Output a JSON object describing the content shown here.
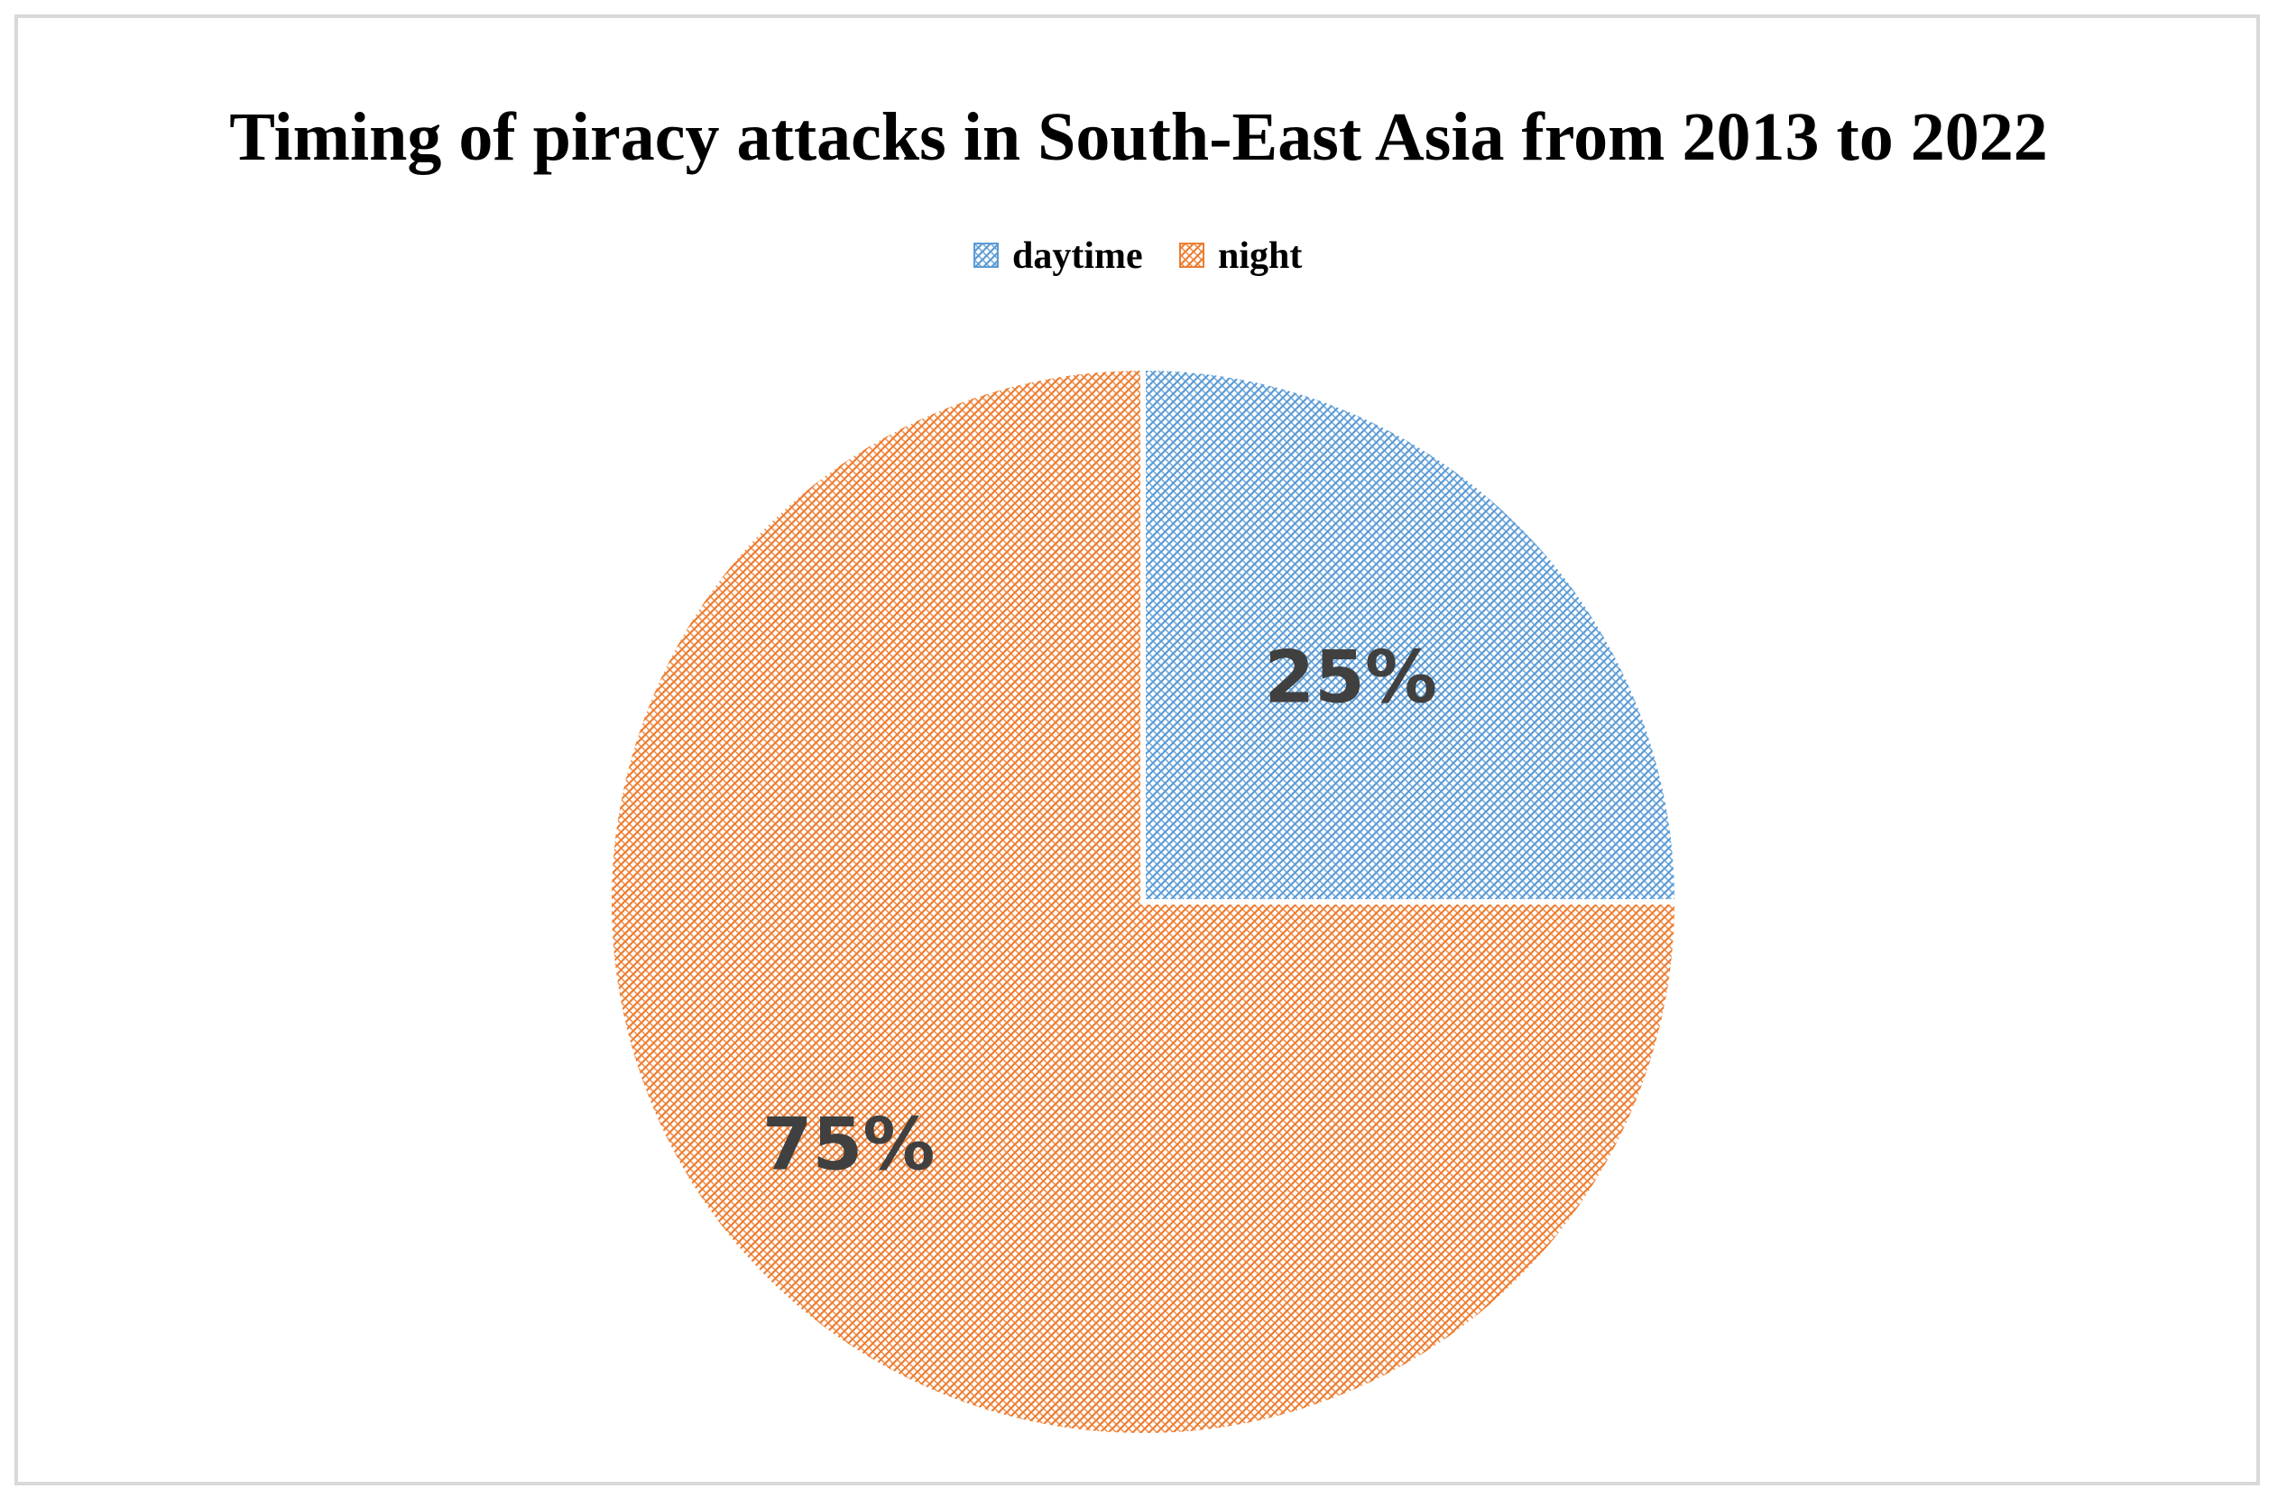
{
  "chart_data": {
    "type": "pie",
    "title": "Timing of piracy attacks in South-East Asia from 2013 to 2022",
    "legend_position": "top",
    "categories": [
      "daytime",
      "night"
    ],
    "values": [
      25,
      75
    ],
    "labels": [
      "25%",
      "75%"
    ],
    "colors": [
      "#5b9bd5",
      "#ed7d31"
    ],
    "fill_style": "crosshatch"
  }
}
